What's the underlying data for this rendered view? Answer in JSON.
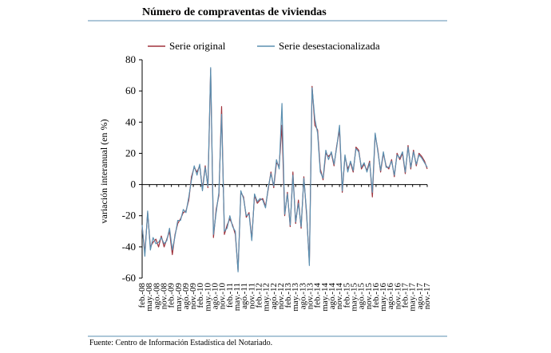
{
  "header": {
    "title": "Número de compraventas de viviendas"
  },
  "footer": {
    "source": "Fuente: Centro de Información Estadística del Notariado."
  },
  "colors": {
    "original": "#a0323c",
    "deseasonalized": "#5b8fb0",
    "rule": "#5b8fb0"
  },
  "chart_data": {
    "type": "line",
    "title": "",
    "ylabel": "variación interanual (en %)",
    "xlabel": "",
    "ylim": [
      -60,
      80
    ],
    "yticks": [
      80,
      60,
      40,
      20,
      0,
      -20,
      -40,
      -60
    ],
    "grid": false,
    "legend": "top",
    "x_tick_labels": [
      "feb.-08",
      "may.-08",
      "ago.-08",
      "nov.-08",
      "feb.-09",
      "may.-09",
      "ago.-09",
      "nov.-09",
      "feb.-10",
      "may.-10",
      "ago.-10",
      "nov.-10",
      "feb.-11",
      "may.-11",
      "ago.-11",
      "nov.-11",
      "feb.-12",
      "may.-12",
      "ago.-12",
      "nov.-12",
      "feb.-13",
      "may.-13",
      "ago.-13",
      "nov.-13",
      "feb.-14",
      "may.-14",
      "ago.-14",
      "nov.-14",
      "feb.-15",
      "may.-15",
      "ago.-15",
      "nov.-15",
      "feb.-16",
      "may.-16",
      "ago.-16",
      "nov.-16",
      "feb.-17",
      "may.-17",
      "ago.-17",
      "nov.-17"
    ],
    "series": [
      {
        "name": "Serie original",
        "values": [
          -27,
          -44,
          -18,
          -40,
          -37,
          -35,
          -40,
          -33,
          -40,
          -35,
          -30,
          -45,
          -32,
          -25,
          -22,
          -18,
          -17,
          -10,
          5,
          11,
          8,
          12,
          -3,
          12,
          -2,
          74,
          -34,
          -16,
          -7,
          50,
          -32,
          -26,
          -22,
          -26,
          -32,
          -55,
          -5,
          -8,
          -21,
          -18,
          -35,
          -7,
          -12,
          -10,
          -9,
          -14,
          -3,
          8,
          -2,
          14,
          12,
          38,
          -20,
          -5,
          -27,
          8,
          -25,
          -10,
          -28,
          5,
          -20,
          -50,
          63,
          38,
          35,
          10,
          3,
          20,
          18,
          20,
          12,
          25,
          35,
          -5,
          18,
          10,
          14,
          8,
          24,
          22,
          10,
          13,
          9,
          15,
          -8,
          32,
          22,
          8,
          20,
          12,
          10,
          16,
          5,
          20,
          16,
          20,
          7,
          25,
          10,
          22,
          12,
          20,
          18,
          15,
          10
        ]
      },
      {
        "name": "Serie desestacionalizada",
        "values": [
          -26,
          -46,
          -17,
          -42,
          -34,
          -38,
          -37,
          -34,
          -38,
          -36,
          -28,
          -42,
          -33,
          -23,
          -23,
          -16,
          -18,
          -8,
          3,
          12,
          6,
          13,
          -4,
          11,
          -1,
          75,
          -32,
          -18,
          -5,
          45,
          -30,
          -28,
          -20,
          -27,
          -30,
          -56,
          -4,
          -9,
          -20,
          -19,
          -36,
          -6,
          -11,
          -9,
          -10,
          -15,
          -2,
          7,
          -1,
          16,
          10,
          52,
          -19,
          -6,
          -26,
          6,
          -24,
          -12,
          -27,
          4,
          -18,
          -52,
          62,
          42,
          33,
          8,
          4,
          22,
          16,
          21,
          13,
          24,
          38,
          -4,
          19,
          8,
          15,
          9,
          23,
          21,
          11,
          14,
          8,
          14,
          -5,
          33,
          21,
          9,
          21,
          11,
          11,
          15,
          6,
          19,
          17,
          21,
          8,
          24,
          11,
          21,
          13,
          19,
          17,
          14,
          11
        ]
      }
    ]
  }
}
